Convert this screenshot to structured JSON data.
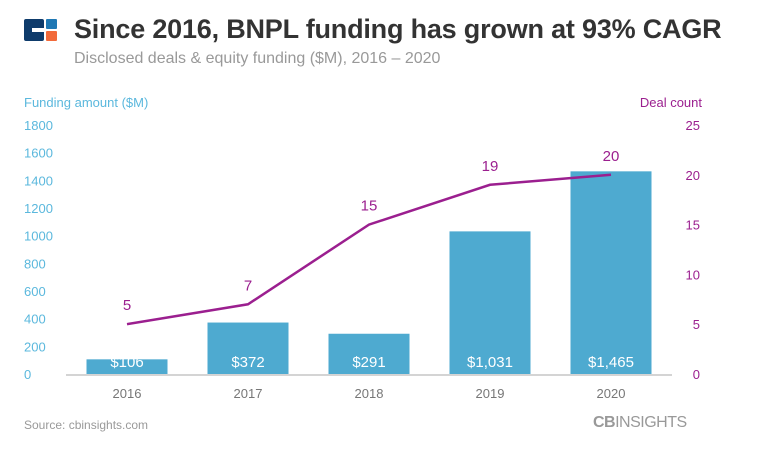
{
  "header": {
    "title": "Since 2016, BNPL funding has grown at 93% CAGR",
    "subtitle": "Disclosed deals & equity funding ($M), 2016 – 2020"
  },
  "footer": {
    "source": "Source: cbinsights.com",
    "brand_bold": "CB",
    "brand_rest": "INSIGHTS"
  },
  "colors": {
    "bars": "#4eaad0",
    "line": "#9b1f8f",
    "left_axis": "#5bb8dd",
    "right_axis": "#9b1f8f"
  },
  "chart_data": {
    "type": "bar",
    "categories": [
      "2016",
      "2017",
      "2018",
      "2019",
      "2020"
    ],
    "series": [
      {
        "name": "Funding amount ($M)",
        "type": "bar",
        "axis": "left",
        "values": [
          106,
          372,
          291,
          1031,
          1465
        ],
        "labels": [
          "$106",
          "$372",
          "$291",
          "$1,031",
          "$1,465"
        ]
      },
      {
        "name": "Deal count",
        "type": "line",
        "axis": "right",
        "values": [
          5,
          7,
          15,
          19,
          20
        ],
        "labels": [
          "5",
          "7",
          "15",
          "19",
          "20"
        ]
      }
    ],
    "ylabel": "Funding amount ($M)",
    "y2label": "Deal count",
    "ylim": [
      0,
      1800
    ],
    "y2lim": [
      0,
      25
    ],
    "yticks": [
      "0",
      "200",
      "400",
      "600",
      "800",
      "1000",
      "1200",
      "1400",
      "1600",
      "1800"
    ],
    "y2ticks": [
      "0",
      "5",
      "10",
      "15",
      "20",
      "25"
    ],
    "grid": false
  }
}
